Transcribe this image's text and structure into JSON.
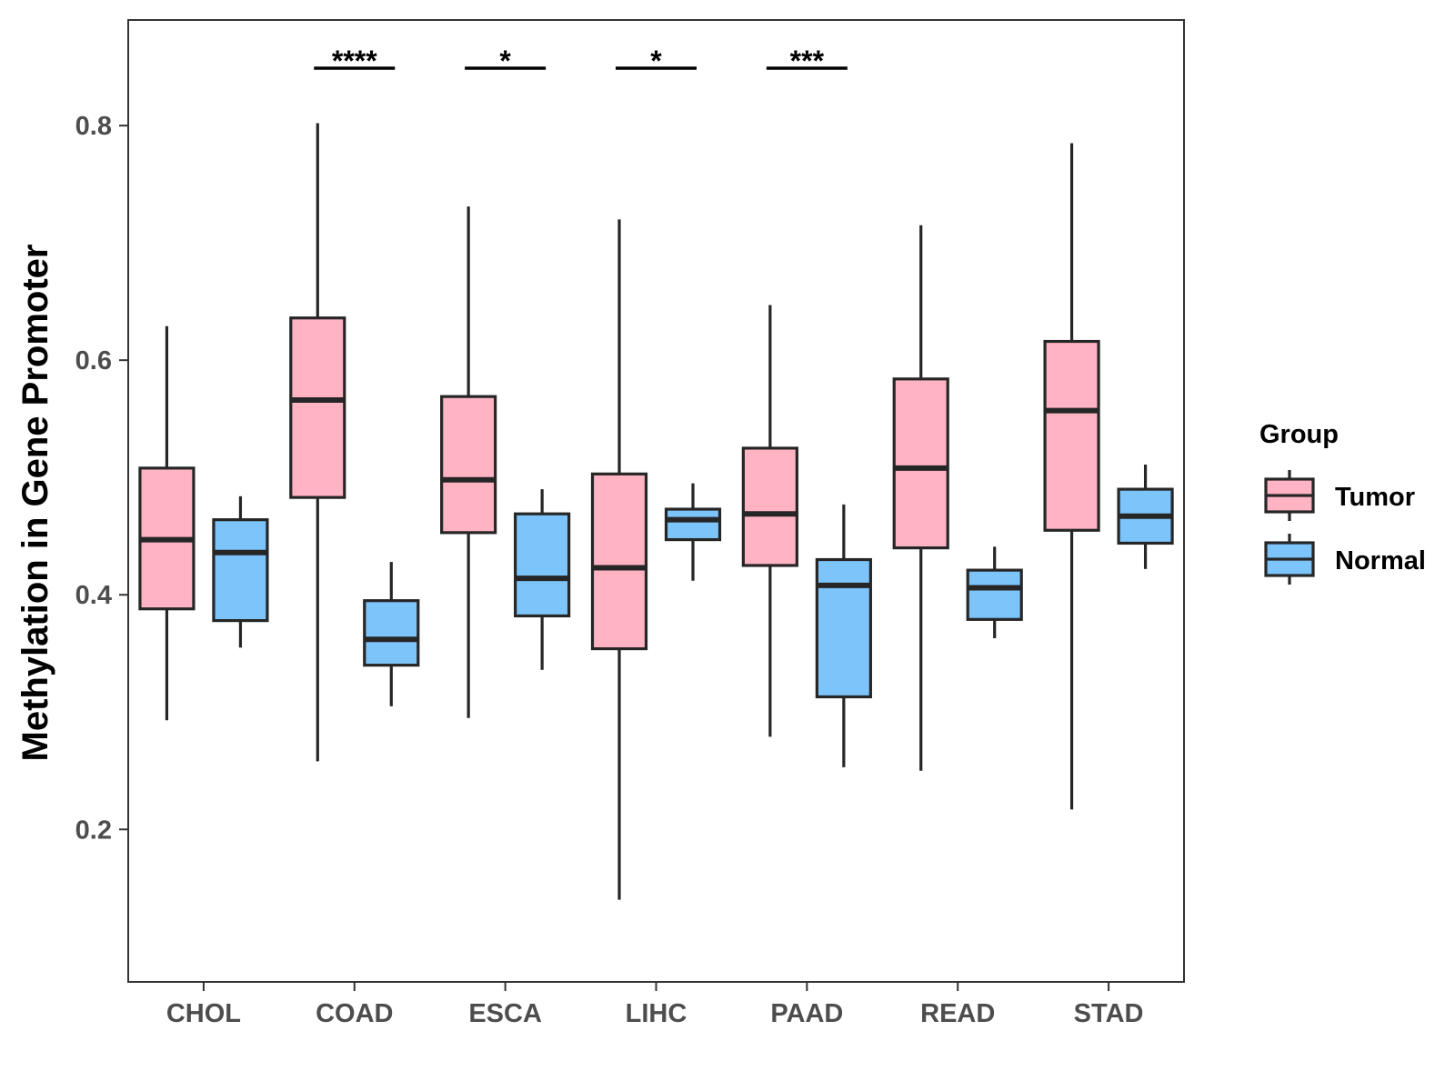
{
  "chart_data": {
    "type": "boxplot",
    "title": "",
    "xlabel": "",
    "ylabel": "Methylation in Gene Promoter",
    "ylim": [
      0.07,
      0.89
    ],
    "yticks": [
      0.2,
      0.4,
      0.6,
      0.8
    ],
    "ytick_labels": [
      "0.2",
      "0.4",
      "0.6",
      "0.8"
    ],
    "categories": [
      "CHOL",
      "COAD",
      "ESCA",
      "LIHC",
      "PAAD",
      "READ",
      "STAD"
    ],
    "legend": {
      "title": "Group",
      "position": "right",
      "entries": [
        {
          "name": "Tumor",
          "color": "#FFB3C3"
        },
        {
          "name": "Normal",
          "color": "#7DC4FB"
        }
      ]
    },
    "series": [
      {
        "name": "Tumor",
        "color": "#FFB3C3",
        "boxes": [
          {
            "min": 0.293,
            "q1": 0.388,
            "median": 0.447,
            "q3": 0.508,
            "max": 0.629
          },
          {
            "min": 0.258,
            "q1": 0.483,
            "median": 0.566,
            "q3": 0.636,
            "max": 0.802
          },
          {
            "min": 0.295,
            "q1": 0.453,
            "median": 0.498,
            "q3": 0.569,
            "max": 0.731
          },
          {
            "min": 0.14,
            "q1": 0.354,
            "median": 0.423,
            "q3": 0.503,
            "max": 0.72
          },
          {
            "min": 0.279,
            "q1": 0.425,
            "median": 0.469,
            "q3": 0.525,
            "max": 0.647
          },
          {
            "min": 0.25,
            "q1": 0.44,
            "median": 0.508,
            "q3": 0.584,
            "max": 0.715
          },
          {
            "min": 0.217,
            "q1": 0.455,
            "median": 0.557,
            "q3": 0.616,
            "max": 0.785
          }
        ]
      },
      {
        "name": "Normal",
        "color": "#7DC4FB",
        "boxes": [
          {
            "min": 0.355,
            "q1": 0.378,
            "median": 0.436,
            "q3": 0.464,
            "max": 0.484
          },
          {
            "min": 0.305,
            "q1": 0.34,
            "median": 0.362,
            "q3": 0.395,
            "max": 0.428
          },
          {
            "min": 0.336,
            "q1": 0.382,
            "median": 0.414,
            "q3": 0.469,
            "max": 0.49
          },
          {
            "min": 0.412,
            "q1": 0.447,
            "median": 0.464,
            "q3": 0.473,
            "max": 0.495
          },
          {
            "min": 0.253,
            "q1": 0.313,
            "median": 0.408,
            "q3": 0.43,
            "max": 0.477
          },
          {
            "min": 0.363,
            "q1": 0.379,
            "median": 0.406,
            "q3": 0.421,
            "max": 0.441
          },
          {
            "min": 0.422,
            "q1": 0.444,
            "median": 0.467,
            "q3": 0.49,
            "max": 0.511
          }
        ]
      }
    ],
    "annotations": [
      {
        "category": "COAD",
        "label": "****"
      },
      {
        "category": "ESCA",
        "label": "*"
      },
      {
        "category": "LIHC",
        "label": "*"
      },
      {
        "category": "PAAD",
        "label": "***"
      }
    ]
  }
}
